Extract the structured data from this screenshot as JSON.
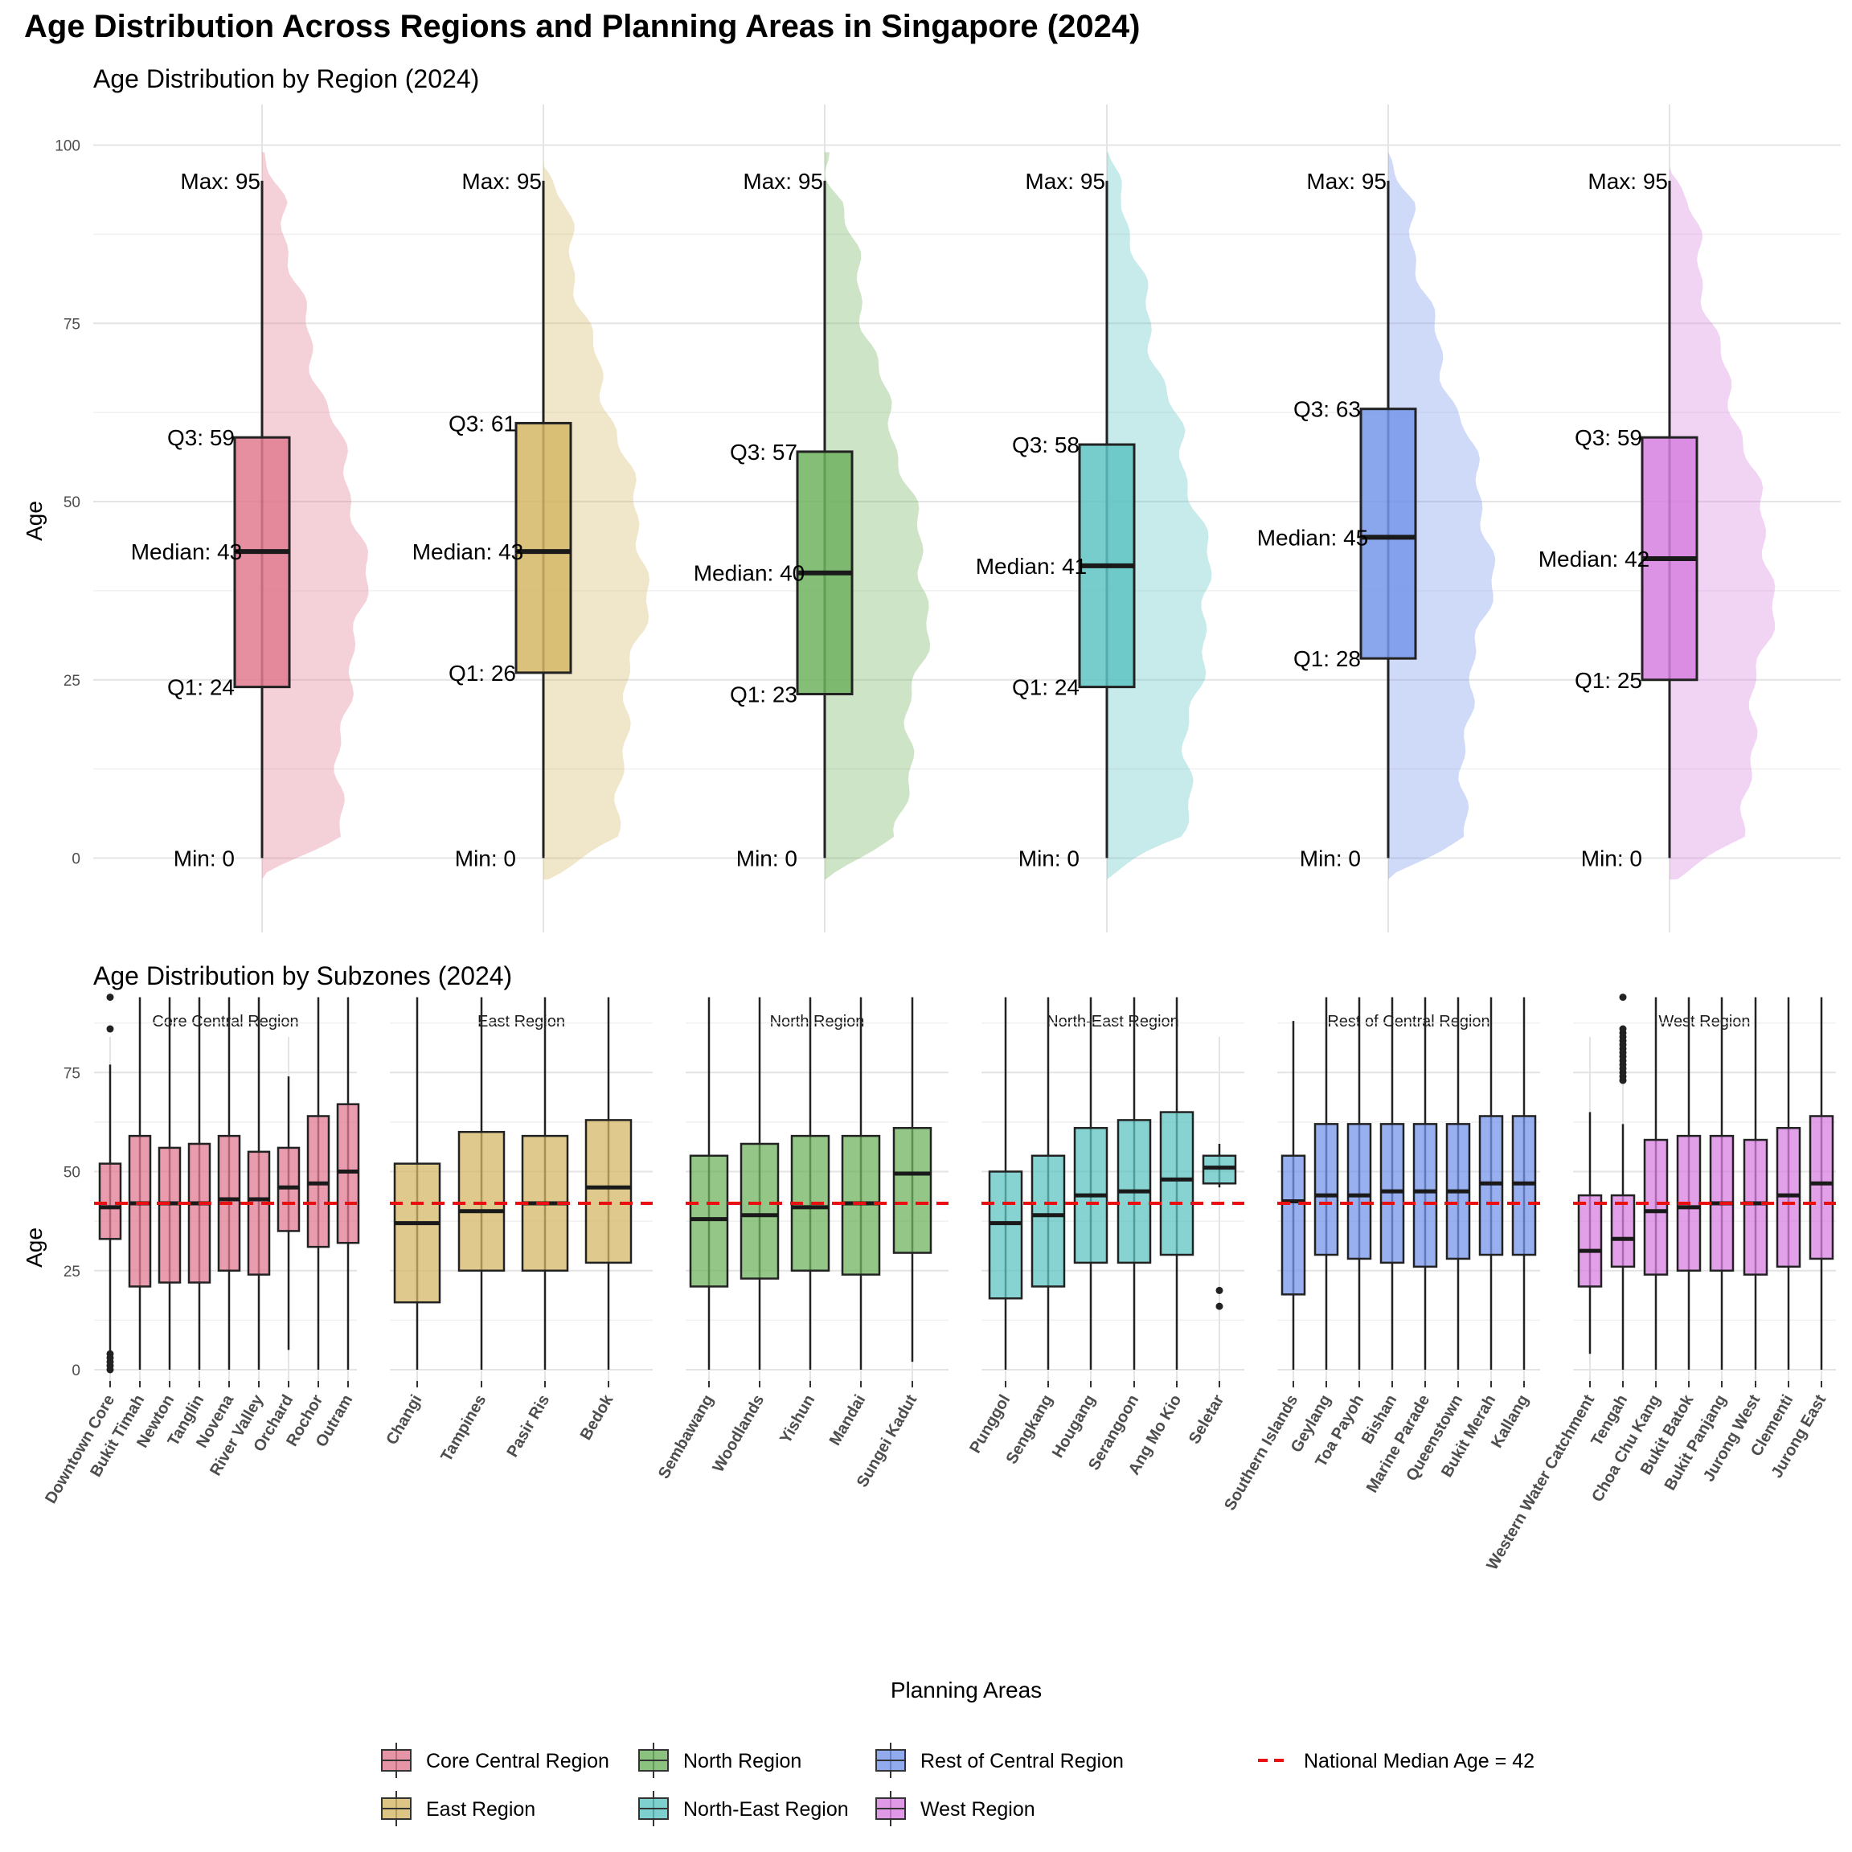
{
  "title": "Age Distribution Across Regions and Planning Areas in Singapore (2024)",
  "colors": {
    "Core Central Region": "#e07b91",
    "East Region": "#d4b766",
    "North Region": "#6fb35f",
    "North-East Region": "#5ec4c2",
    "Rest of Central Region": "#7696ea",
    "West Region": "#d780e0",
    "median_line": "#e81010"
  },
  "chart_data": [
    {
      "type": "box",
      "title": "Age Distribution by Region (2024)",
      "ylabel": "Age",
      "xlabel": "",
      "ylim": [
        -10,
        105
      ],
      "yticks": [
        0,
        25,
        50,
        75,
        100
      ],
      "grid": true,
      "series": [
        {
          "name": "Core Central Region",
          "min": 0,
          "q1": 24,
          "median": 43,
          "q3": 59,
          "max": 95,
          "labels": {
            "max": "Max: 95",
            "q3": "Q3: 59",
            "median": "Median: 43",
            "q1": "Q1: 24",
            "min": "Min: 0"
          }
        },
        {
          "name": "East Region",
          "min": 0,
          "q1": 26,
          "median": 43,
          "q3": 61,
          "max": 95,
          "labels": {
            "max": "Max: 95",
            "q3": "Q3: 61",
            "median": "Median: 43",
            "q1": "Q1: 26",
            "min": "Min: 0"
          }
        },
        {
          "name": "North Region",
          "min": 0,
          "q1": 23,
          "median": 40,
          "q3": 57,
          "max": 95,
          "labels": {
            "max": "Max: 95",
            "q3": "Q3: 57",
            "median": "Median: 40",
            "q1": "Q1: 23",
            "min": "Min: 0"
          }
        },
        {
          "name": "North-East Region",
          "min": 0,
          "q1": 24,
          "median": 41,
          "q3": 58,
          "max": 95,
          "labels": {
            "max": "Max: 95",
            "q3": "Q3: 58",
            "median": "Median: 41",
            "q1": "Q1: 24",
            "min": "Min: 0"
          }
        },
        {
          "name": "Rest of Central Region",
          "min": 0,
          "q1": 28,
          "median": 45,
          "q3": 63,
          "max": 95,
          "labels": {
            "max": "Max: 95",
            "q3": "Q3: 63",
            "median": "Median: 45",
            "q1": "Q1: 28",
            "min": "Min: 0"
          }
        },
        {
          "name": "West Region",
          "min": 0,
          "q1": 25,
          "median": 42,
          "q3": 59,
          "max": 95,
          "labels": {
            "max": "Max: 95",
            "q3": "Q3: 59",
            "median": "Median: 42",
            "q1": "Q1: 25",
            "min": "Min: 0"
          }
        }
      ]
    },
    {
      "type": "box",
      "title": "Age Distribution by Subzones (2024)",
      "ylabel": "Age",
      "xlabel": "Planning Areas",
      "ylim": [
        -3,
        100
      ],
      "yticks": [
        0,
        25,
        50,
        75
      ],
      "reference_line": {
        "value": 42,
        "label": "National Median Age = 42"
      },
      "facets": [
        {
          "region": "Core Central Region",
          "areas": [
            {
              "name": "Downtown Core",
              "min": 4,
              "q1": 33,
              "median": 41,
              "q3": 52,
              "max": 77,
              "outliers": [
                94,
                86,
                4,
                3,
                2,
                1,
                0
              ]
            },
            {
              "name": "Bukit Timah",
              "min": 0,
              "q1": 21,
              "median": 42,
              "q3": 59,
              "max": 94,
              "outliers": []
            },
            {
              "name": "Newton",
              "min": 0,
              "q1": 22,
              "median": 42,
              "q3": 56,
              "max": 94,
              "outliers": []
            },
            {
              "name": "Tanglin",
              "min": 0,
              "q1": 22,
              "median": 42,
              "q3": 57,
              "max": 94,
              "outliers": []
            },
            {
              "name": "Novena",
              "min": 0,
              "q1": 25,
              "median": 43,
              "q3": 59,
              "max": 94,
              "outliers": []
            },
            {
              "name": "River Valley",
              "min": 0,
              "q1": 24,
              "median": 43,
              "q3": 55,
              "max": 94,
              "outliers": []
            },
            {
              "name": "Orchard",
              "min": 5,
              "q1": 35,
              "median": 46,
              "q3": 56,
              "max": 74,
              "outliers": []
            },
            {
              "name": "Rochor",
              "min": 0,
              "q1": 31,
              "median": 47,
              "q3": 64,
              "max": 94,
              "outliers": []
            },
            {
              "name": "Outram",
              "min": 0,
              "q1": 32,
              "median": 50,
              "q3": 67,
              "max": 94,
              "outliers": []
            }
          ]
        },
        {
          "region": "East Region",
          "areas": [
            {
              "name": "Changi",
              "min": 0,
              "q1": 17,
              "median": 37,
              "q3": 52,
              "max": 94,
              "outliers": []
            },
            {
              "name": "Tampines",
              "min": 0,
              "q1": 25,
              "median": 40,
              "q3": 60,
              "max": 94,
              "outliers": []
            },
            {
              "name": "Pasir Ris",
              "min": 0,
              "q1": 25,
              "median": 42,
              "q3": 59,
              "max": 94,
              "outliers": []
            },
            {
              "name": "Bedok",
              "min": 0,
              "q1": 27,
              "median": 46,
              "q3": 63,
              "max": 94,
              "outliers": []
            }
          ]
        },
        {
          "region": "North Region",
          "areas": [
            {
              "name": "Sembawang",
              "min": 0,
              "q1": 21,
              "median": 38,
              "q3": 54,
              "max": 94,
              "outliers": []
            },
            {
              "name": "Woodlands",
              "min": 0,
              "q1": 23,
              "median": 39,
              "q3": 57,
              "max": 94,
              "outliers": []
            },
            {
              "name": "Yishun",
              "min": 0,
              "q1": 25,
              "median": 41,
              "q3": 59,
              "max": 94,
              "outliers": []
            },
            {
              "name": "Mandai",
              "min": 0,
              "q1": 24,
              "median": 42,
              "q3": 59,
              "max": 94,
              "outliers": []
            },
            {
              "name": "Sungei Kadut",
              "min": 2,
              "q1": 29.5,
              "median": 49.5,
              "q3": 61,
              "max": 94,
              "outliers": []
            }
          ]
        },
        {
          "region": "North-East Region",
          "areas": [
            {
              "name": "Punggol",
              "min": 0,
              "q1": 18,
              "median": 37,
              "q3": 50,
              "max": 94,
              "outliers": []
            },
            {
              "name": "Sengkang",
              "min": 0,
              "q1": 21,
              "median": 39,
              "q3": 54,
              "max": 94,
              "outliers": []
            },
            {
              "name": "Hougang",
              "min": 0,
              "q1": 27,
              "median": 44,
              "q3": 61,
              "max": 94,
              "outliers": []
            },
            {
              "name": "Serangoon",
              "min": 0,
              "q1": 27,
              "median": 45,
              "q3": 63,
              "max": 94,
              "outliers": []
            },
            {
              "name": "Ang Mo Kio",
              "min": 0,
              "q1": 29,
              "median": 48,
              "q3": 65,
              "max": 94,
              "outliers": []
            },
            {
              "name": "Seletar",
              "min": 46,
              "q1": 47,
              "median": 51,
              "q3": 54,
              "max": 57,
              "outliers": [
                20,
                16
              ]
            }
          ]
        },
        {
          "region": "Rest of Central Region",
          "areas": [
            {
              "name": "Southern Islands",
              "min": 0,
              "q1": 19,
              "median": 42.5,
              "q3": 54,
              "max": 88,
              "outliers": []
            },
            {
              "name": "Geylang",
              "min": 0,
              "q1": 29,
              "median": 44,
              "q3": 62,
              "max": 94,
              "outliers": []
            },
            {
              "name": "Toa Payoh",
              "min": 0,
              "q1": 28,
              "median": 44,
              "q3": 62,
              "max": 94,
              "outliers": []
            },
            {
              "name": "Bishan",
              "min": 0,
              "q1": 27,
              "median": 45,
              "q3": 62,
              "max": 94,
              "outliers": []
            },
            {
              "name": "Marine Parade",
              "min": 0,
              "q1": 26,
              "median": 45,
              "q3": 62,
              "max": 94,
              "outliers": []
            },
            {
              "name": "Queenstown",
              "min": 0,
              "q1": 28,
              "median": 45,
              "q3": 62,
              "max": 94,
              "outliers": []
            },
            {
              "name": "Bukit Merah",
              "min": 0,
              "q1": 29,
              "median": 47,
              "q3": 64,
              "max": 94,
              "outliers": []
            },
            {
              "name": "Kallang",
              "min": 0,
              "q1": 29,
              "median": 47,
              "q3": 64,
              "max": 94,
              "outliers": []
            }
          ]
        },
        {
          "region": "West Region",
          "areas": [
            {
              "name": "Western Water Catchment",
              "min": 4,
              "q1": 21,
              "median": 30,
              "q3": 44,
              "max": 65,
              "outliers": []
            },
            {
              "name": "Tengah",
              "min": 0,
              "q1": 26,
              "median": 33,
              "q3": 44,
              "max": 62,
              "outliers": [
                94,
                86,
                85,
                84,
                83,
                82,
                81,
                80,
                79,
                78,
                77,
                76,
                75,
                74,
                73
              ]
            },
            {
              "name": "Choa Chu Kang",
              "min": 0,
              "q1": 24,
              "median": 40,
              "q3": 58,
              "max": 94,
              "outliers": []
            },
            {
              "name": "Bukit Batok",
              "min": 0,
              "q1": 25,
              "median": 41,
              "q3": 59,
              "max": 94,
              "outliers": []
            },
            {
              "name": "Bukit Panjang",
              "min": 0,
              "q1": 25,
              "median": 42,
              "q3": 59,
              "max": 94,
              "outliers": []
            },
            {
              "name": "Jurong West",
              "min": 0,
              "q1": 24,
              "median": 42,
              "q3": 58,
              "max": 94,
              "outliers": []
            },
            {
              "name": "Clementi",
              "min": 0,
              "q1": 26,
              "median": 44,
              "q3": 61,
              "max": 94,
              "outliers": []
            },
            {
              "name": "Jurong East",
              "min": 0,
              "q1": 28,
              "median": 47,
              "q3": 64,
              "max": 94,
              "outliers": []
            }
          ]
        }
      ]
    }
  ],
  "legend": {
    "placement": "bottom",
    "items": [
      "Core Central Region",
      "East Region",
      "North Region",
      "North-East Region",
      "Rest of Central Region",
      "West Region"
    ],
    "line_item": "National Median Age = 42"
  }
}
